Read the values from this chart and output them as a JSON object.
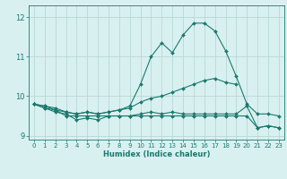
{
  "x": [
    0,
    1,
    2,
    3,
    4,
    5,
    6,
    7,
    8,
    9,
    10,
    11,
    12,
    13,
    14,
    15,
    16,
    17,
    18,
    19,
    20,
    21,
    22,
    23
  ],
  "line1": [
    9.8,
    9.75,
    9.65,
    9.6,
    9.55,
    9.6,
    9.55,
    9.6,
    9.65,
    9.7,
    9.85,
    9.95,
    10.0,
    10.1,
    10.2,
    10.3,
    10.4,
    10.45,
    10.35,
    10.3,
    null,
    null,
    null,
    null
  ],
  "line2": [
    9.8,
    9.75,
    9.7,
    9.6,
    9.55,
    9.6,
    9.55,
    9.6,
    9.65,
    9.75,
    10.3,
    11.0,
    11.35,
    11.1,
    11.55,
    11.85,
    11.85,
    11.65,
    11.15,
    10.5,
    9.8,
    9.55,
    9.55,
    9.5
  ],
  "line3": [
    9.8,
    9.7,
    9.65,
    9.5,
    9.5,
    9.5,
    9.5,
    9.5,
    9.5,
    9.5,
    9.5,
    9.5,
    9.5,
    9.5,
    9.5,
    9.5,
    9.5,
    9.5,
    9.5,
    9.5,
    9.5,
    9.2,
    9.25,
    9.2
  ],
  "line4": [
    9.8,
    9.7,
    9.6,
    9.55,
    9.4,
    9.45,
    9.4,
    9.5,
    9.5,
    9.5,
    9.55,
    9.6,
    9.55,
    9.6,
    9.55,
    9.55,
    9.55,
    9.55,
    9.55,
    9.55,
    9.75,
    9.2,
    9.25,
    9.2
  ],
  "line_color": "#1a7a6e",
  "bg_color": "#d9f0f0",
  "grid_color": "#b8d8d8",
  "ylim": [
    8.9,
    12.3
  ],
  "yticks": [
    9,
    10,
    11,
    12
  ],
  "xticks": [
    0,
    1,
    2,
    3,
    4,
    5,
    6,
    7,
    8,
    9,
    10,
    11,
    12,
    13,
    14,
    15,
    16,
    17,
    18,
    19,
    20,
    21,
    22,
    23
  ],
  "xlabel": "Humidex (Indice chaleur)",
  "marker": "D",
  "markersize": 2.0,
  "linewidth": 0.8
}
